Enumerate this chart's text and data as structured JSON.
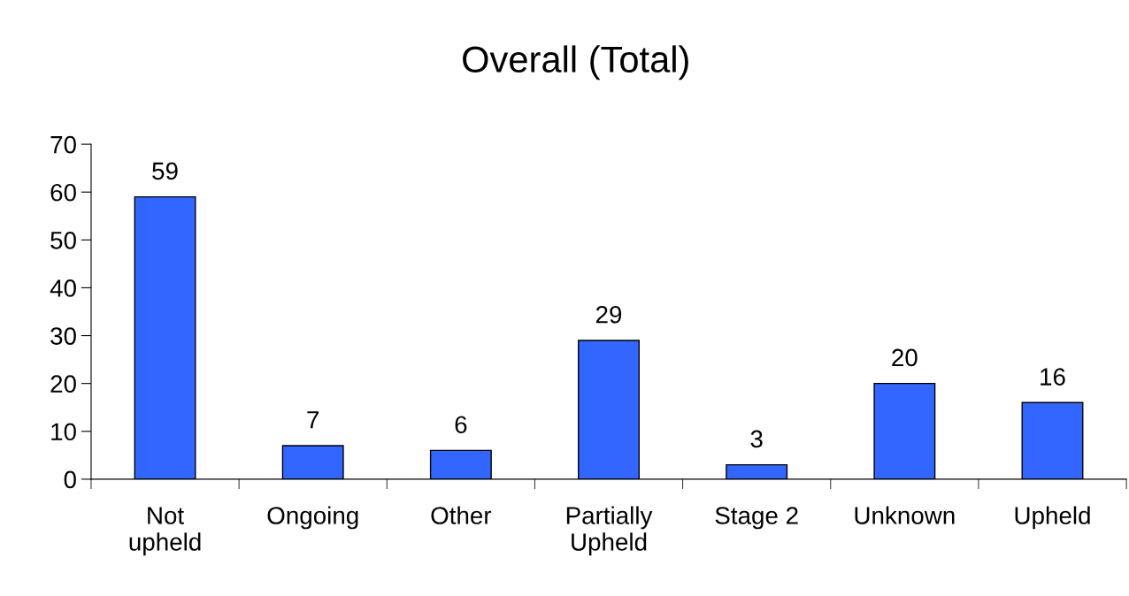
{
  "chart_data": {
    "type": "bar",
    "title": "Overall (Total)",
    "categories": [
      "Not\nupheld",
      "Ongoing",
      "Other",
      "Partially\nUpheld",
      "Stage 2",
      "Unknown",
      "Upheld"
    ],
    "values": [
      59,
      7,
      6,
      29,
      3,
      20,
      16
    ],
    "color": "#3366ff",
    "ylim": [
      0,
      70
    ],
    "yticks": [
      0,
      10,
      20,
      30,
      40,
      50,
      60,
      70
    ],
    "data_labels": true,
    "grid": false,
    "legend": false
  }
}
